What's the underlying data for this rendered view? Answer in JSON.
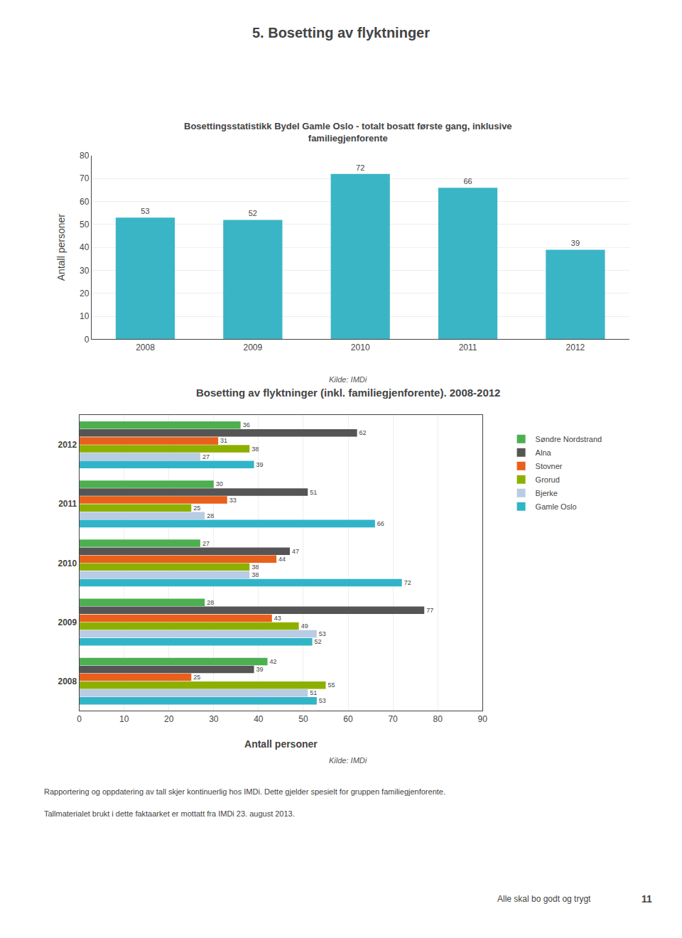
{
  "title": "5. Bosetting av flyktninger",
  "chart_data": [
    {
      "type": "bar",
      "title": "Bosettingsstatistikk Bydel Gamle Oslo - totalt bosatt første gang, inklusive\nfamiliegjenforente",
      "categories": [
        "2008",
        "2009",
        "2010",
        "2011",
        "2012"
      ],
      "values": [
        53,
        52,
        72,
        66,
        39
      ],
      "color": "#3ab5c6",
      "y_label": "Antall personer",
      "ylim": [
        0,
        80
      ],
      "yticks": [
        0,
        10,
        20,
        30,
        40,
        50,
        60,
        70,
        80
      ],
      "grid": true,
      "data_labels": true,
      "annotations": [
        "Kilde: IMDi"
      ]
    },
    {
      "type": "bar",
      "orientation": "horizontal",
      "title": "Bosetting av flyktninger (inkl. familiegjenforente). 2008-2012",
      "categories": [
        "2008",
        "2009",
        "2010",
        "2011",
        "2012"
      ],
      "series": [
        {
          "name": "Søndre Nordstrand",
          "color": "#4caf50",
          "values": [
            42,
            28,
            27,
            30,
            36
          ]
        },
        {
          "name": "Alna",
          "color": "#555555",
          "values": [
            39,
            77,
            47,
            51,
            62
          ]
        },
        {
          "name": "Stovner",
          "color": "#e8601c",
          "values": [
            25,
            43,
            44,
            33,
            31
          ]
        },
        {
          "name": "Grorud",
          "color": "#8db000",
          "values": [
            55,
            49,
            38,
            25,
            38
          ]
        },
        {
          "name": "Bjerke",
          "color": "#b8cce4",
          "values": [
            51,
            53,
            38,
            28,
            27
          ]
        },
        {
          "name": "Gamle Oslo",
          "color": "#31b4c8",
          "values": [
            53,
            52,
            72,
            66,
            39
          ]
        }
      ],
      "x_label": "Antall personer",
      "xlim": [
        0,
        90
      ],
      "xticks": [
        0,
        10,
        20,
        30,
        40,
        50,
        60,
        70,
        80,
        90
      ],
      "grid": true,
      "data_labels": true,
      "legend": "right",
      "annotations": [
        "Kilde: IMDi"
      ]
    }
  ],
  "annotations": [
    "Rapportering og oppdatering av tall skjer kontinuerlig hos IMDi. Dette gjelder spesielt for gruppen familiegjenforente.",
    "Tallmaterialet brukt i dette faktaarket er mottatt fra IMDi 23. august 2013.",
    "Alle skal bo godt og trygt",
    "11"
  ]
}
